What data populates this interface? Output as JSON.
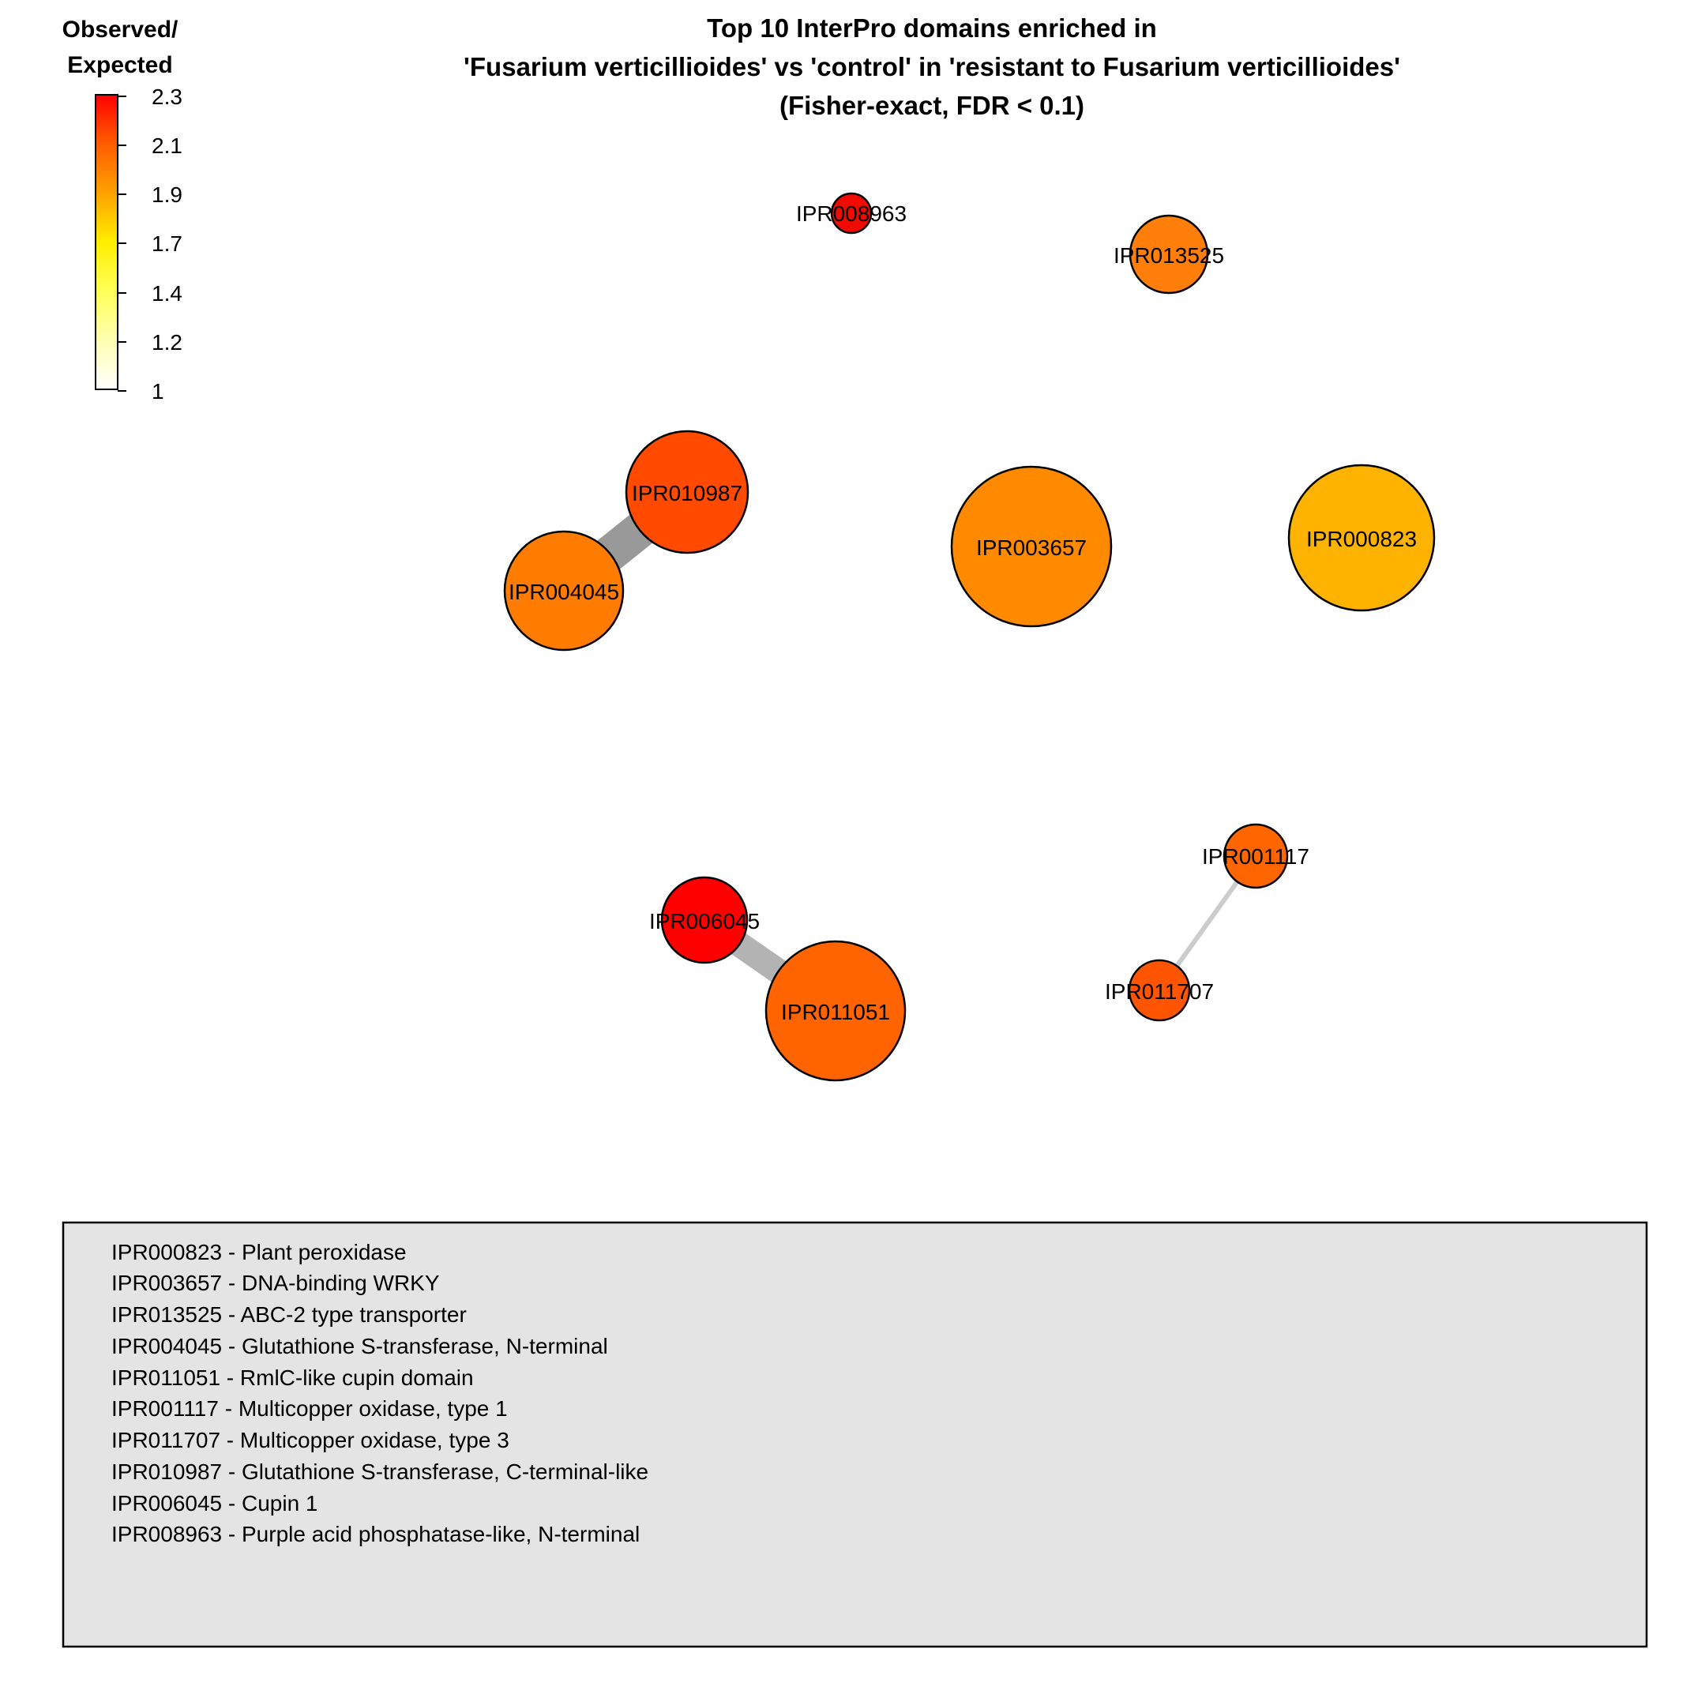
{
  "title": {
    "lines": [
      "Top 10 InterPro domains enriched in",
      "'Fusarium verticillioides' vs 'control' in 'resistant to Fusarium verticillioides'",
      "(Fisher-exact, FDR < 0.1)"
    ]
  },
  "colorbar": {
    "title_lines": [
      "Observed/",
      "Expected"
    ],
    "ticks": [
      "2.3",
      "2.1",
      "1.9",
      "1.7",
      "1.4",
      "1.2",
      "1"
    ],
    "gradient": [
      "#ff0000",
      "#ff7f00",
      "#ffd000",
      "#ffff00",
      "#ffff66",
      "#ffffcc",
      "#ffffff"
    ]
  },
  "nodes": [
    {
      "id": "IPR008963",
      "label": "IPR008963",
      "color": "#f00a00"
    },
    {
      "id": "IPR013525",
      "label": "IPR013525",
      "color": "#ff7f0a"
    },
    {
      "id": "IPR010987",
      "label": "IPR010987",
      "color": "#ff4a00"
    },
    {
      "id": "IPR004045",
      "label": "IPR004045",
      "color": "#ff7c00"
    },
    {
      "id": "IPR003657",
      "label": "IPR003657",
      "color": "#ff8a00"
    },
    {
      "id": "IPR000823",
      "label": "IPR000823",
      "color": "#fdb300"
    },
    {
      "id": "IPR001117",
      "label": "IPR001117",
      "color": "#ff6600"
    },
    {
      "id": "IPR011707",
      "label": "IPR011707",
      "color": "#ff5500"
    },
    {
      "id": "IPR006045",
      "label": "IPR006045",
      "color": "#ff0000"
    },
    {
      "id": "IPR011051",
      "label": "IPR011051",
      "color": "#ff6400"
    }
  ],
  "edges": [
    {
      "source": "IPR010987",
      "target": "IPR004045",
      "color": "#999999"
    },
    {
      "source": "IPR006045",
      "target": "IPR011051",
      "color": "#b3b3b3"
    },
    {
      "source": "IPR001117",
      "target": "IPR011707",
      "color": "#cccccc"
    }
  ],
  "legend": {
    "items": [
      "IPR000823 - Plant peroxidase",
      "IPR003657 - DNA-binding WRKY",
      "IPR013525 - ABC-2 type transporter",
      "IPR004045 - Glutathione S-transferase, N-terminal",
      "IPR011051 - RmlC-like cupin domain",
      "IPR001117 - Multicopper oxidase, type 1",
      "IPR011707 - Multicopper oxidase, type 3",
      "IPR010987 - Glutathione S-transferase, C-terminal-like",
      "IPR006045 - Cupin 1",
      "IPR008963 - Purple acid phosphatase-like, N-terminal"
    ],
    "background": "#e4e4e4"
  }
}
